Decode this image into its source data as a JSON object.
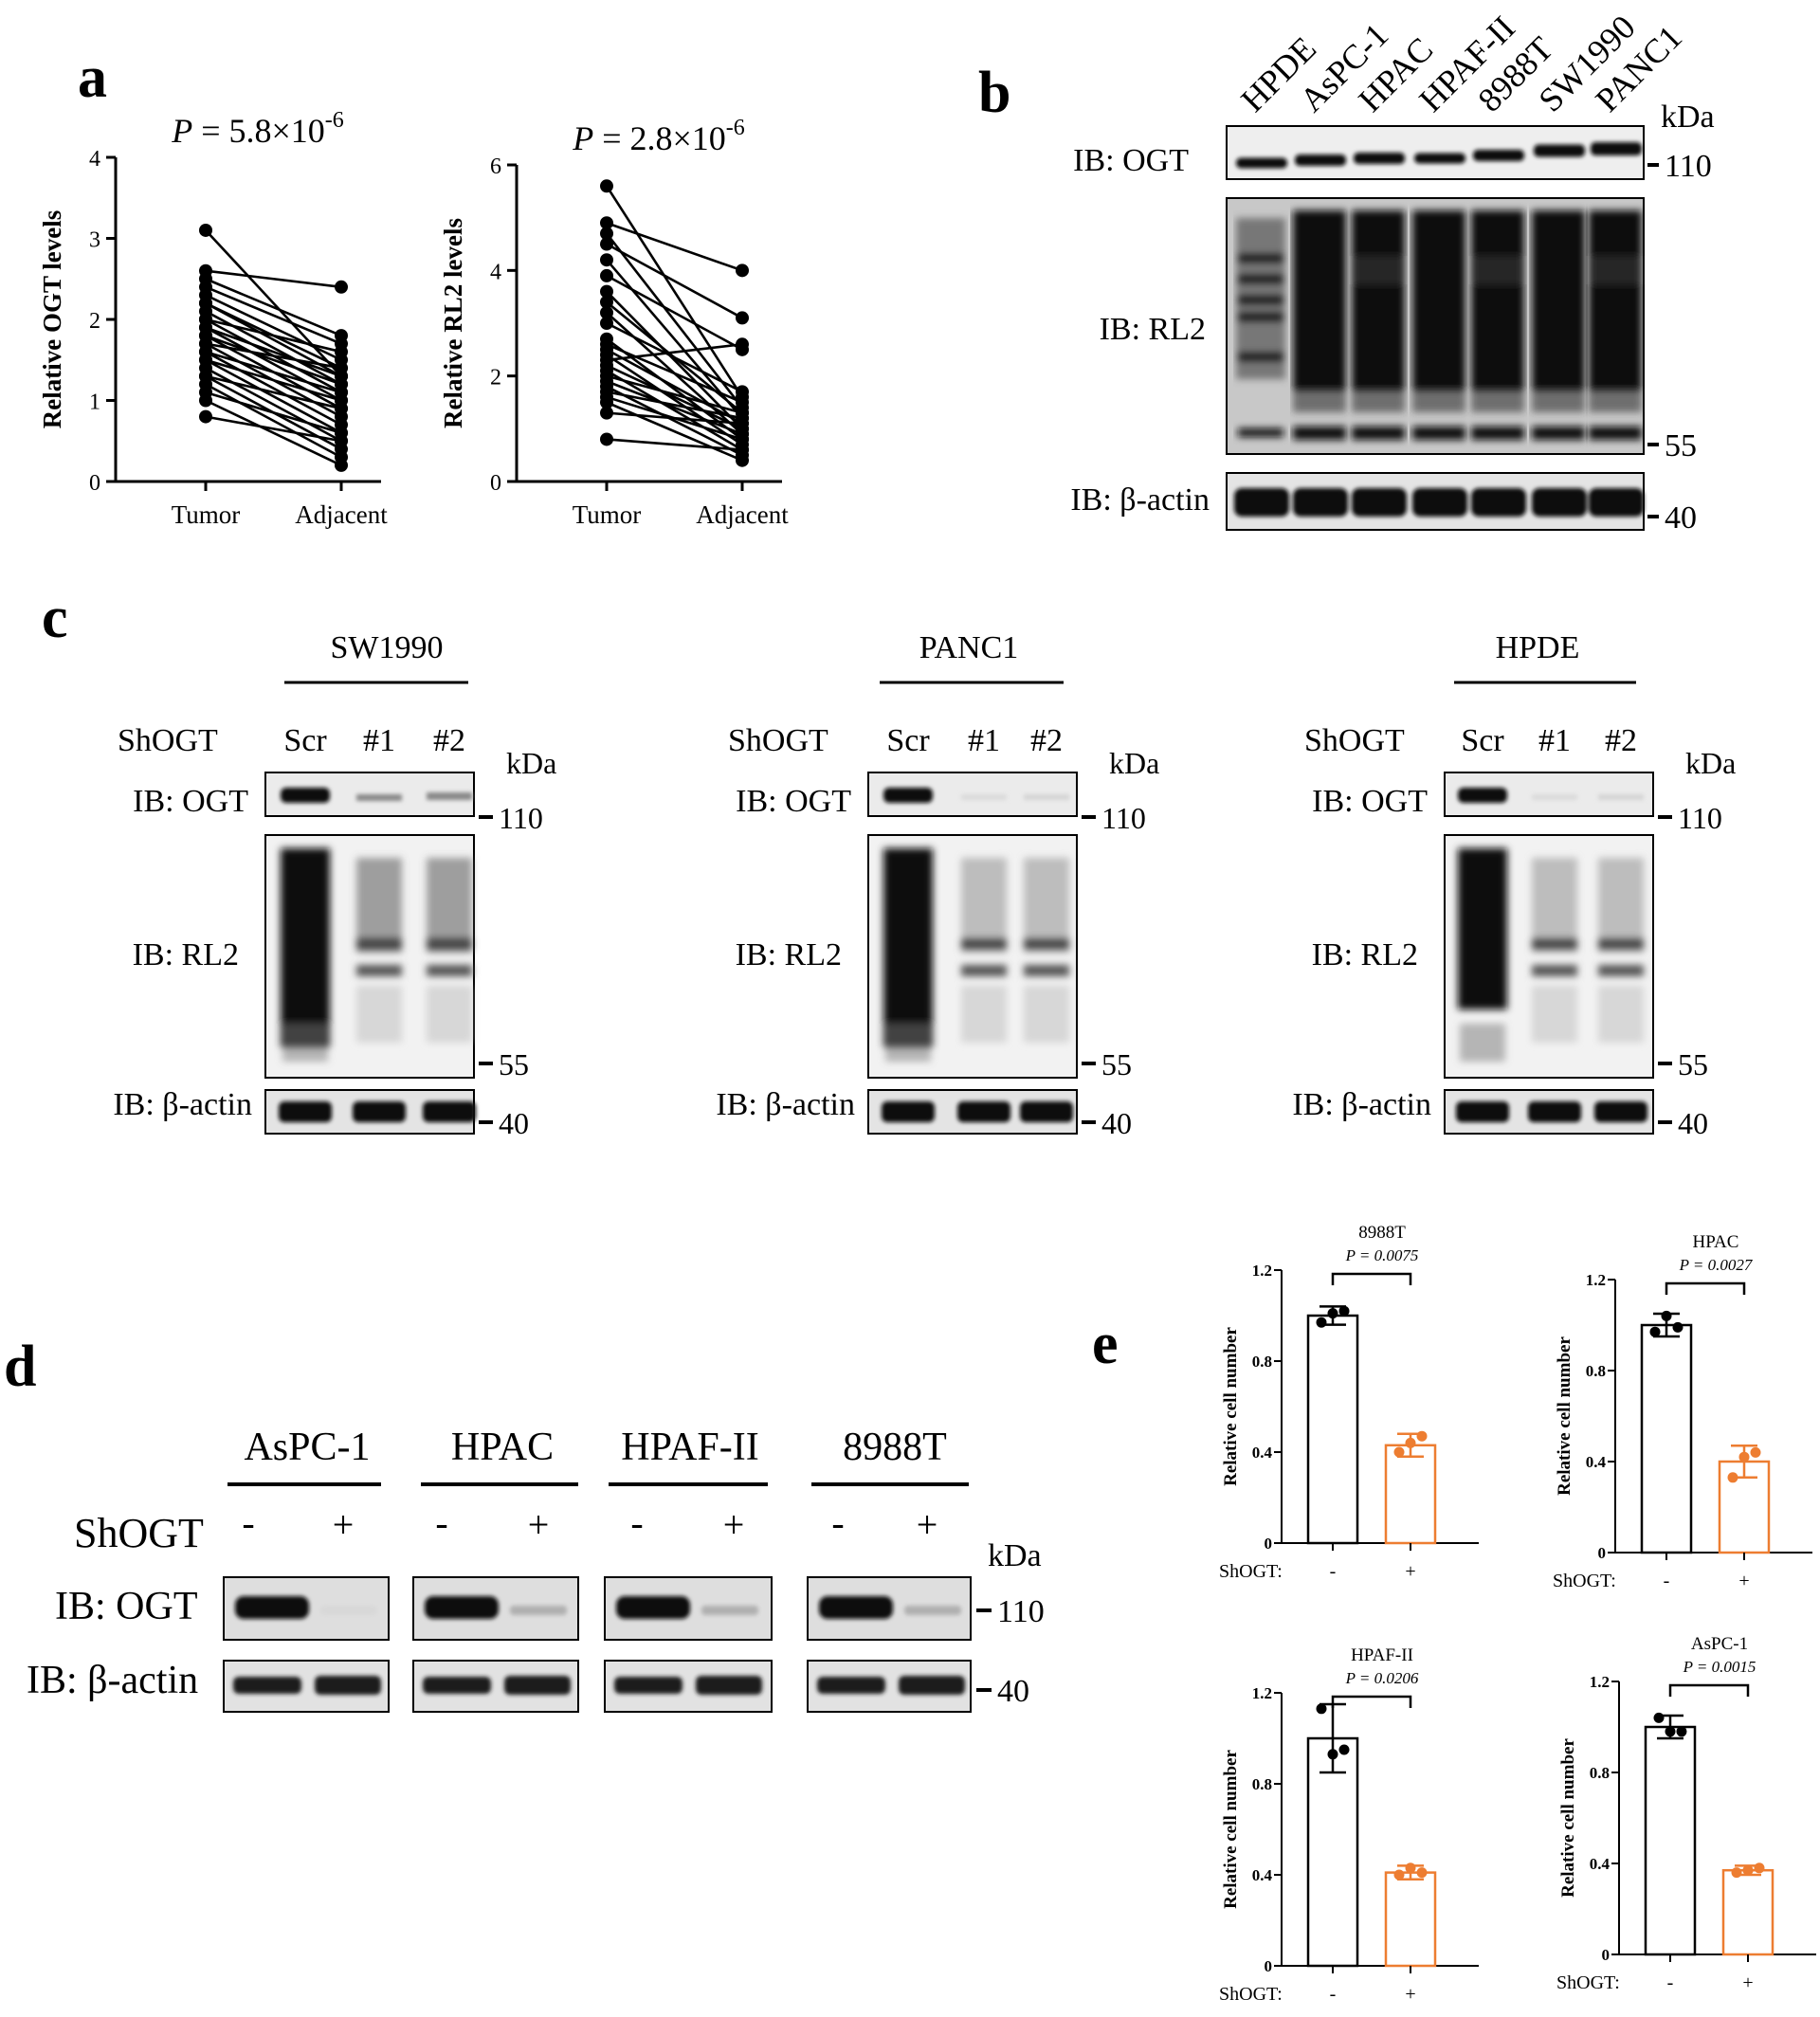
{
  "panel_labels": {
    "a": "a",
    "b": "b",
    "c": "c",
    "d": "d",
    "e": "e"
  },
  "common": {
    "kda": "kDa",
    "ib_ogt": "IB: OGT",
    "ib_rl2": "IB: RL2",
    "ib_actin": "IB: β-actin",
    "shogt": "ShOGT",
    "shogt_colon": "ShOGT:",
    "minus": "-",
    "plus": "+"
  },
  "panel_b": {
    "lanes": [
      "HPDE",
      "AsPC-1",
      "HPAC",
      "HPAF-II",
      "8988T",
      "SW1990",
      "PANC1"
    ],
    "markers": [
      "110",
      "55",
      "40"
    ]
  },
  "panel_c": {
    "groups": [
      {
        "cell_line": "SW1990",
        "lanes": [
          "Scr",
          "#1",
          "#2"
        ]
      },
      {
        "cell_line": "PANC1",
        "lanes": [
          "Scr",
          "#1",
          "#2"
        ]
      },
      {
        "cell_line": "HPDE",
        "lanes": [
          "Scr",
          "#1",
          "#2"
        ]
      }
    ],
    "markers": [
      "110",
      "55",
      "40"
    ]
  },
  "panel_d": {
    "cell_lines": [
      "AsPC-1",
      "HPAC",
      "HPAF-II",
      "8988T"
    ],
    "markers": [
      "110",
      "40"
    ]
  },
  "chart_data": [
    {
      "type": "line",
      "panel": "a",
      "annotation": {
        "p_prefix": "P",
        "p_mantissa": " = 5.8×10",
        "p_exponent": "-6"
      },
      "categories": [
        "Tumor",
        "Adjacent"
      ],
      "ylabel": "Relative OGT levels",
      "ylim": [
        0,
        4
      ],
      "yticks": [
        0,
        1,
        2,
        3,
        4
      ],
      "pairs": [
        [
          3.1,
          1.3
        ],
        [
          2.6,
          2.4
        ],
        [
          2.5,
          1.8
        ],
        [
          2.4,
          1.7
        ],
        [
          2.3,
          1.5
        ],
        [
          2.2,
          1.4
        ],
        [
          2.2,
          1.3
        ],
        [
          2.1,
          1.2
        ],
        [
          2.0,
          1.1
        ],
        [
          2.0,
          1.6
        ],
        [
          1.9,
          1.0
        ],
        [
          1.9,
          1.3
        ],
        [
          1.8,
          0.9
        ],
        [
          1.8,
          1.2
        ],
        [
          1.7,
          0.8
        ],
        [
          1.7,
          1.4
        ],
        [
          1.6,
          0.7
        ],
        [
          1.6,
          1.1
        ],
        [
          1.5,
          0.6
        ],
        [
          1.5,
          1.0
        ],
        [
          1.4,
          0.5
        ],
        [
          1.3,
          0.4
        ],
        [
          1.3,
          0.9
        ],
        [
          1.2,
          0.3
        ],
        [
          1.1,
          0.6
        ],
        [
          1.0,
          0.2
        ],
        [
          0.8,
          0.5
        ]
      ]
    },
    {
      "type": "line",
      "panel": "a",
      "annotation": {
        "p_prefix": "P",
        "p_mantissa": " = 2.8×10",
        "p_exponent": "-6"
      },
      "categories": [
        "Tumor",
        "Adjacent"
      ],
      "ylabel": "Relative RL2 levels",
      "ylim": [
        0,
        6
      ],
      "yticks": [
        0,
        2,
        4,
        6
      ],
      "pairs": [
        [
          5.6,
          1.6
        ],
        [
          4.9,
          4.0
        ],
        [
          4.7,
          1.4
        ],
        [
          4.5,
          3.1
        ],
        [
          4.2,
          1.2
        ],
        [
          3.9,
          2.5
        ],
        [
          3.6,
          1.0
        ],
        [
          3.4,
          1.3
        ],
        [
          3.2,
          0.9
        ],
        [
          3.0,
          1.7
        ],
        [
          2.7,
          0.8
        ],
        [
          2.6,
          1.5
        ],
        [
          2.5,
          1.1
        ],
        [
          2.4,
          0.7
        ],
        [
          2.3,
          2.6
        ],
        [
          2.2,
          1.0
        ],
        [
          2.1,
          0.6
        ],
        [
          2.0,
          1.3
        ],
        [
          1.9,
          0.9
        ],
        [
          1.8,
          0.5
        ],
        [
          1.7,
          1.2
        ],
        [
          1.6,
          0.8
        ],
        [
          1.5,
          0.4
        ],
        [
          1.3,
          1.1
        ],
        [
          0.8,
          0.6
        ]
      ]
    },
    {
      "type": "bar",
      "panel": "e",
      "title": "8988T",
      "annotation": "P = 0.0075",
      "categories": [
        "-",
        "+"
      ],
      "values": [
        1.0,
        0.43
      ],
      "errors": [
        0.04,
        0.05
      ],
      "points": [
        [
          0.97,
          1.01,
          1.02
        ],
        [
          0.4,
          0.44,
          0.47
        ]
      ],
      "ylabel": "Relative cell number",
      "xlabel": "ShOGT:",
      "ylim": [
        0,
        1.2
      ],
      "yticks": [
        0.0,
        0.4,
        0.8,
        1.2
      ]
    },
    {
      "type": "bar",
      "panel": "e",
      "title": "HPAC",
      "annotation": "P = 0.0027",
      "categories": [
        "-",
        "+"
      ],
      "values": [
        1.0,
        0.4
      ],
      "errors": [
        0.05,
        0.07
      ],
      "points": [
        [
          0.97,
          1.04,
          0.99
        ],
        [
          0.33,
          0.42,
          0.44
        ]
      ],
      "ylabel": "Relative cell number",
      "xlabel": "ShOGT:",
      "ylim": [
        0,
        1.2
      ],
      "yticks": [
        0.0,
        0.4,
        0.8,
        1.2
      ]
    },
    {
      "type": "bar",
      "panel": "e",
      "title": "HPAF-II",
      "annotation": "P = 0.0206",
      "categories": [
        "-",
        "+"
      ],
      "values": [
        1.0,
        0.41
      ],
      "errors": [
        0.15,
        0.03
      ],
      "points": [
        [
          1.13,
          0.93,
          0.95
        ],
        [
          0.4,
          0.43,
          0.41
        ]
      ],
      "ylabel": "Relative cell number",
      "xlabel": "ShOGT:",
      "ylim": [
        0,
        1.2
      ],
      "yticks": [
        0.0,
        0.4,
        0.8,
        1.2
      ]
    },
    {
      "type": "bar",
      "panel": "e",
      "title": "AsPC-1",
      "annotation": "P = 0.0015",
      "categories": [
        "-",
        "+"
      ],
      "values": [
        1.0,
        0.37
      ],
      "errors": [
        0.05,
        0.02
      ],
      "points": [
        [
          1.04,
          0.98,
          0.98
        ],
        [
          0.36,
          0.37,
          0.38
        ]
      ],
      "ylabel": "Relative cell number",
      "xlabel": "ShOGT:",
      "ylim": [
        0,
        1.2
      ],
      "yticks": [
        0.0,
        0.4,
        0.8,
        1.2
      ]
    }
  ]
}
